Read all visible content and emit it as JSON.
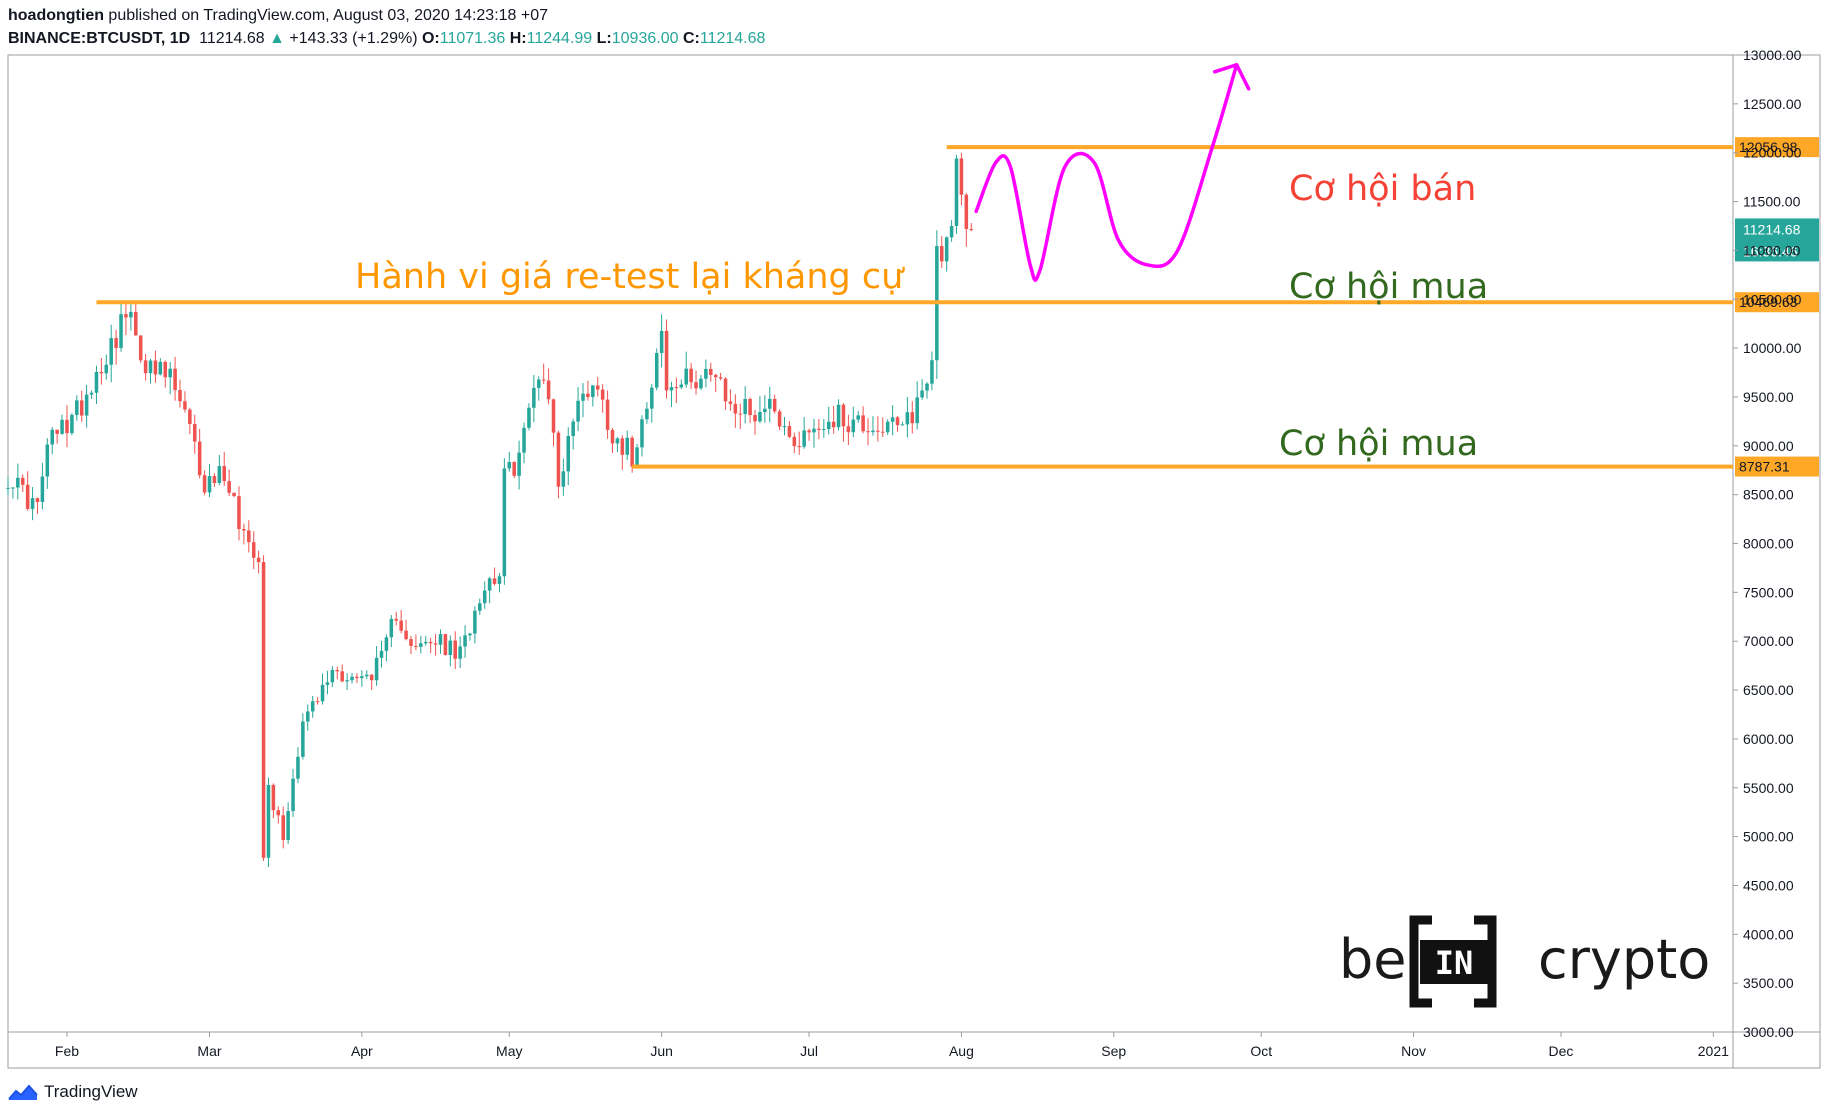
{
  "header": {
    "author": "hoadongtien",
    "published": " published on TradingView.com, August 03, 2020 14:23:18 +07",
    "symbol": "BINANCE:BTCUSDT, 1D",
    "last": "11214.68",
    "change": "+143.33 (+1.29%)",
    "o_label": "O:",
    "o": "11071.36",
    "h_label": "H:",
    "h": "11244.99",
    "l_label": "L:",
    "l": "10936.00",
    "c_label": "C:",
    "c": "11214.68"
  },
  "footer": {
    "brand": "TradingView"
  },
  "watermark": {
    "left": "be",
    "middle": "IN",
    "right": "crypto"
  },
  "colors": {
    "up": "#26a69a",
    "down": "#ef5350",
    "level": "#ffa726",
    "drawing": "#ff00ff",
    "sell_text": "#f44336",
    "buy_text": "#33691e",
    "annotation_text": "#ff9800",
    "price_tag": "#26a69a"
  },
  "chart_data": {
    "type": "candlestick",
    "ylim": [
      3000,
      13000
    ],
    "yticks": [
      3000,
      3500,
      4000,
      4500,
      5000,
      5500,
      6000,
      6500,
      7000,
      7500,
      8000,
      8500,
      9000,
      9500,
      10000,
      10500,
      11000,
      11500,
      12000,
      12500,
      13000
    ],
    "ytick_labels": [
      "3000.00",
      "3500.00",
      "4000.00",
      "4500.00",
      "5000.00",
      "5500.00",
      "6000.00",
      "6500.00",
      "7000.00",
      "7500.00",
      "8000.00",
      "8500.00",
      "9000.00",
      "9500.00",
      "10000.00",
      "10500.00",
      "11000.00",
      "11500.00",
      "12000.00",
      "12500.00",
      "13000.00"
    ],
    "xlim": [
      "2020-01-20",
      "2021-01-05"
    ],
    "xticks": [
      {
        "date": "2020-02-01",
        "label": "Feb"
      },
      {
        "date": "2020-03-01",
        "label": "Mar"
      },
      {
        "date": "2020-04-01",
        "label": "Apr"
      },
      {
        "date": "2020-05-01",
        "label": "May"
      },
      {
        "date": "2020-06-01",
        "label": "Jun"
      },
      {
        "date": "2020-07-01",
        "label": "Jul"
      },
      {
        "date": "2020-08-01",
        "label": "Aug"
      },
      {
        "date": "2020-09-01",
        "label": "Sep"
      },
      {
        "date": "2020-10-01",
        "label": "Oct"
      },
      {
        "date": "2020-11-01",
        "label": "Nov"
      },
      {
        "date": "2020-12-01",
        "label": "Dec"
      },
      {
        "date": "2021-01-01",
        "label": "2021"
      }
    ],
    "anchors": [
      [
        "2020-01-20",
        8700
      ],
      [
        "2020-01-26",
        8350
      ],
      [
        "2020-01-28",
        9000
      ],
      [
        "2020-02-03",
        9350
      ],
      [
        "2020-02-09",
        9950
      ],
      [
        "2020-02-13",
        10350
      ],
      [
        "2020-02-18",
        9750
      ],
      [
        "2020-02-22",
        9700
      ],
      [
        "2020-02-25",
        9300
      ],
      [
        "2020-02-29",
        8600
      ],
      [
        "2020-03-04",
        8750
      ],
      [
        "2020-03-08",
        8100
      ],
      [
        "2020-03-11",
        7900
      ],
      [
        "2020-03-12",
        4850
      ],
      [
        "2020-03-13",
        5500
      ],
      [
        "2020-03-16",
        5000
      ],
      [
        "2020-03-20",
        6200
      ],
      [
        "2020-03-23",
        6400
      ],
      [
        "2020-03-26",
        6700
      ],
      [
        "2020-04-01",
        6600
      ],
      [
        "2020-04-05",
        6800
      ],
      [
        "2020-04-08",
        7300
      ],
      [
        "2020-04-12",
        6900
      ],
      [
        "2020-04-16",
        7000
      ],
      [
        "2020-04-21",
        6850
      ],
      [
        "2020-04-25",
        7500
      ],
      [
        "2020-04-29",
        7750
      ],
      [
        "2020-04-30",
        8650
      ],
      [
        "2020-05-03",
        8900
      ],
      [
        "2020-05-07",
        9800
      ],
      [
        "2020-05-09",
        9550
      ],
      [
        "2020-05-11",
        8600
      ],
      [
        "2020-05-14",
        9300
      ],
      [
        "2020-05-18",
        9700
      ],
      [
        "2020-05-22",
        9150
      ],
      [
        "2020-05-26",
        8900
      ],
      [
        "2020-05-29",
        9500
      ],
      [
        "2020-06-01",
        10150
      ],
      [
        "2020-06-02",
        9550
      ],
      [
        "2020-06-06",
        9650
      ],
      [
        "2020-06-10",
        9800
      ],
      [
        "2020-06-15",
        9400
      ],
      [
        "2020-06-20",
        9350
      ],
      [
        "2020-06-24",
        9450
      ],
      [
        "2020-06-27",
        9050
      ],
      [
        "2020-07-01",
        9150
      ],
      [
        "2020-07-06",
        9300
      ],
      [
        "2020-07-10",
        9250
      ],
      [
        "2020-07-15",
        9200
      ],
      [
        "2020-07-20",
        9150
      ],
      [
        "2020-07-22",
        9350
      ],
      [
        "2020-07-25",
        9650
      ],
      [
        "2020-07-26",
        9950
      ],
      [
        "2020-07-27",
        11000
      ],
      [
        "2020-07-29",
        11100
      ],
      [
        "2020-07-30",
        11350
      ],
      [
        "2020-07-31",
        11800
      ],
      [
        "2020-08-01",
        11450
      ],
      [
        "2020-08-02",
        11100
      ],
      [
        "2020-08-03",
        11214.68
      ]
    ],
    "levels": [
      {
        "price": 12056.98,
        "label": "12056.98",
        "from": "2020-07-29"
      },
      {
        "price": 10469.63,
        "label": "10469.63",
        "from": "2020-02-07"
      },
      {
        "price": 8787.31,
        "label": "8787.31",
        "from": "2020-05-26"
      }
    ],
    "last_price": {
      "price": 11214.68,
      "label": "11214.68",
      "countdown": "16:36:46"
    },
    "annotations": {
      "resistance_retest": "Hành vi giá re-test lại kháng cự",
      "sell_zone": "Cơ hội bán",
      "buy_zone_1": "Cơ hội mua",
      "buy_zone_2": "Cơ hội mua"
    },
    "projected_path": [
      [
        "2020-08-04",
        11400
      ],
      [
        "2020-08-08",
        11900
      ],
      [
        "2020-08-11",
        11850
      ],
      [
        "2020-08-15",
        10850
      ],
      [
        "2020-08-17",
        10800
      ],
      [
        "2020-08-22",
        11850
      ],
      [
        "2020-08-28",
        11900
      ],
      [
        "2020-09-02",
        11100
      ],
      [
        "2020-09-08",
        10850
      ],
      [
        "2020-09-14",
        11000
      ],
      [
        "2020-09-21",
        12050
      ],
      [
        "2020-09-26",
        12900
      ]
    ],
    "grid": false,
    "legend": "none"
  }
}
